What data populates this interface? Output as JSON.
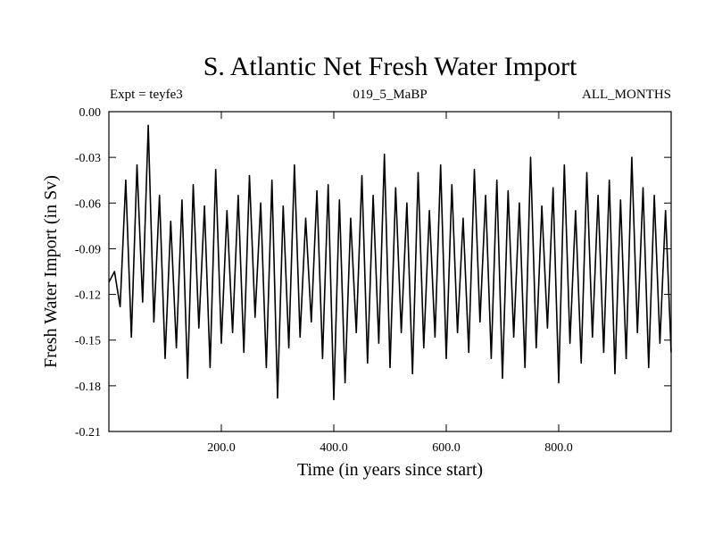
{
  "chart_data": {
    "type": "line",
    "title": "S. Atlantic Net Fresh Water Import",
    "experiment_label": "Expt = teyfe3",
    "run_label": "019_5_MaBP",
    "months_label": "ALL_MONTHS",
    "xlabel": "Time (in years since start)",
    "ylabel": "Fresh Water Import (in Sv)",
    "xlim": [
      0,
      1000
    ],
    "ylim": [
      -0.21,
      0.0
    ],
    "x_ticks": [
      200,
      400,
      600,
      800
    ],
    "x_tick_labels": [
      "200.0",
      "400.0",
      "600.0",
      "800.0"
    ],
    "y_ticks": [
      0.0,
      -0.03,
      -0.06,
      -0.09,
      -0.12,
      -0.15,
      -0.18,
      -0.21
    ],
    "y_tick_labels": [
      "0.00",
      "-0.03",
      "-0.06",
      "-0.09",
      "-0.12",
      "-0.15",
      "-0.18",
      "-0.21"
    ],
    "series": [
      {
        "name": "Net Fresh Water Import",
        "color": "#000000",
        "x": [
          0,
          10,
          20,
          30,
          40,
          50,
          60,
          70,
          80,
          90,
          100,
          110,
          120,
          130,
          140,
          150,
          160,
          170,
          180,
          190,
          200,
          210,
          220,
          230,
          240,
          250,
          260,
          270,
          280,
          290,
          300,
          310,
          320,
          330,
          340,
          350,
          360,
          370,
          380,
          390,
          400,
          410,
          420,
          430,
          440,
          450,
          460,
          470,
          480,
          490,
          500,
          510,
          520,
          530,
          540,
          550,
          560,
          570,
          580,
          590,
          600,
          610,
          620,
          630,
          640,
          650,
          660,
          670,
          680,
          690,
          700,
          710,
          720,
          730,
          740,
          750,
          760,
          770,
          780,
          790,
          800,
          810,
          820,
          830,
          840,
          850,
          860,
          870,
          880,
          890,
          900,
          910,
          920,
          930,
          940,
          950,
          960,
          970,
          980,
          990,
          1000
        ],
        "values": [
          -0.112,
          -0.105,
          -0.128,
          -0.045,
          -0.148,
          -0.035,
          -0.125,
          -0.009,
          -0.138,
          -0.055,
          -0.162,
          -0.072,
          -0.155,
          -0.058,
          -0.175,
          -0.048,
          -0.142,
          -0.062,
          -0.168,
          -0.038,
          -0.152,
          -0.065,
          -0.145,
          -0.055,
          -0.158,
          -0.042,
          -0.135,
          -0.06,
          -0.168,
          -0.045,
          -0.188,
          -0.062,
          -0.155,
          -0.035,
          -0.148,
          -0.07,
          -0.138,
          -0.052,
          -0.162,
          -0.048,
          -0.189,
          -0.058,
          -0.178,
          -0.07,
          -0.145,
          -0.042,
          -0.165,
          -0.055,
          -0.152,
          -0.028,
          -0.168,
          -0.05,
          -0.145,
          -0.06,
          -0.172,
          -0.04,
          -0.155,
          -0.065,
          -0.148,
          -0.035,
          -0.162,
          -0.048,
          -0.145,
          -0.07,
          -0.158,
          -0.038,
          -0.138,
          -0.055,
          -0.162,
          -0.045,
          -0.175,
          -0.052,
          -0.148,
          -0.06,
          -0.168,
          -0.03,
          -0.155,
          -0.062,
          -0.142,
          -0.05,
          -0.178,
          -0.035,
          -0.152,
          -0.065,
          -0.165,
          -0.04,
          -0.148,
          -0.055,
          -0.158,
          -0.045,
          -0.172,
          -0.058,
          -0.162,
          -0.03,
          -0.145,
          -0.05,
          -0.168,
          -0.055,
          -0.152,
          -0.065,
          -0.158
        ]
      }
    ]
  }
}
